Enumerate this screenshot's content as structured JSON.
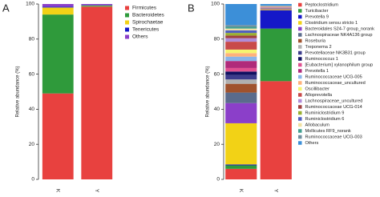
{
  "chart_data": [
    {
      "type": "bar",
      "stacked": true,
      "panel_label": "A",
      "y_label": "Relative abundance (%)",
      "categories": [
        "K",
        "Y"
      ],
      "ylim": [
        0,
        100
      ],
      "yticks": [
        0,
        20,
        40,
        60,
        80,
        100
      ],
      "series": [
        {
          "name": "Firmicutes",
          "color": "#e8413f",
          "values": [
            49,
            98.5
          ]
        },
        {
          "name": "Bacteroidetes",
          "color": "#2f9a3b",
          "values": [
            45,
            0.5
          ]
        },
        {
          "name": "Spirochaetae",
          "color": "#f2d216",
          "values": [
            4,
            0.2
          ]
        },
        {
          "name": "Tenericutes",
          "color": "#1518c8",
          "values": [
            0.5,
            0.3
          ]
        },
        {
          "name": "Others",
          "color": "#8b3fc9",
          "values": [
            1.5,
            0.5
          ]
        }
      ]
    },
    {
      "type": "bar",
      "stacked": true,
      "panel_label": "B",
      "y_label": "Relative abundance (%)",
      "categories": [
        "K",
        "Y"
      ],
      "ylim": [
        0,
        100
      ],
      "yticks": [
        0,
        20,
        40,
        60,
        80,
        100
      ],
      "series": [
        {
          "name": "Peptoclostridium",
          "color": "#e8413f",
          "values": [
            6,
            56
          ]
        },
        {
          "name": "Turicibacter",
          "color": "#2f9a3b",
          "values": [
            2,
            30
          ]
        },
        {
          "name": "Prevotella 9",
          "color": "#1518c8",
          "values": [
            0.5,
            10.5
          ]
        },
        {
          "name": "Clostridium sensu stricto 1",
          "color": "#f2d216",
          "values": [
            23.5,
            0.5
          ]
        },
        {
          "name": "Bacteroidales S24-7 group_norank",
          "color": "#8b3fc9",
          "values": [
            11.5,
            0.3
          ]
        },
        {
          "name": "Lachnospiraceae NK4A136 group",
          "color": "#5a6b8c",
          "values": [
            6,
            0.1
          ]
        },
        {
          "name": "Roseburia",
          "color": "#a0522d",
          "values": [
            5,
            0.1
          ]
        },
        {
          "name": "Treponema 2",
          "color": "#b0b0b0",
          "values": [
            2.5,
            0.1
          ]
        },
        {
          "name": "Prevotellaceae NK3B31 group",
          "color": "#3c3c8c",
          "values": [
            2.5,
            0.1
          ]
        },
        {
          "name": "Ruminococcus 1",
          "color": "#101060",
          "values": [
            2,
            0.1
          ]
        },
        {
          "name": "[Eubacterium] xylanophilum group",
          "color": "#e05090",
          "values": [
            2,
            0.1
          ]
        },
        {
          "name": "Prevotella 1",
          "color": "#b02a7a",
          "values": [
            4,
            0.1
          ]
        },
        {
          "name": "Ruminococcaceae UCG-005",
          "color": "#8ab4e8",
          "values": [
            2.5,
            0.1
          ]
        },
        {
          "name": "Ruminococcaceae_uncultured",
          "color": "#ffb27a",
          "values": [
            2,
            0.1
          ]
        },
        {
          "name": "Oscillibacter",
          "color": "#f5f570",
          "values": [
            2,
            0.1
          ]
        },
        {
          "name": "Alloprevotella",
          "color": "#c84a4a",
          "values": [
            4.5,
            0.1
          ]
        },
        {
          "name": "Lachnospiraceae_uncultured",
          "color": "#b08cd8",
          "values": [
            2,
            0.1
          ]
        },
        {
          "name": "Ruminococcaceae UCG-014",
          "color": "#a04040",
          "values": [
            1.5,
            0.1
          ]
        },
        {
          "name": "Ruminiclostridium 9",
          "color": "#9ab030",
          "values": [
            1.5,
            0.1
          ]
        },
        {
          "name": "Ruminiclostridium 6",
          "color": "#5060c0",
          "values": [
            1.5,
            0.1
          ]
        },
        {
          "name": "Allobaculum",
          "color": "#f0e0a0",
          "values": [
            1,
            0.1
          ]
        },
        {
          "name": "Mollicutes RF9_norank",
          "color": "#40a090",
          "values": [
            1,
            0.1
          ]
        },
        {
          "name": "Ruminococcaceae UCG-003",
          "color": "#7090a0",
          "values": [
            1,
            0.1
          ]
        },
        {
          "name": "Others",
          "color": "#3c8fd8",
          "values": [
            12,
            0.9
          ]
        }
      ]
    }
  ]
}
